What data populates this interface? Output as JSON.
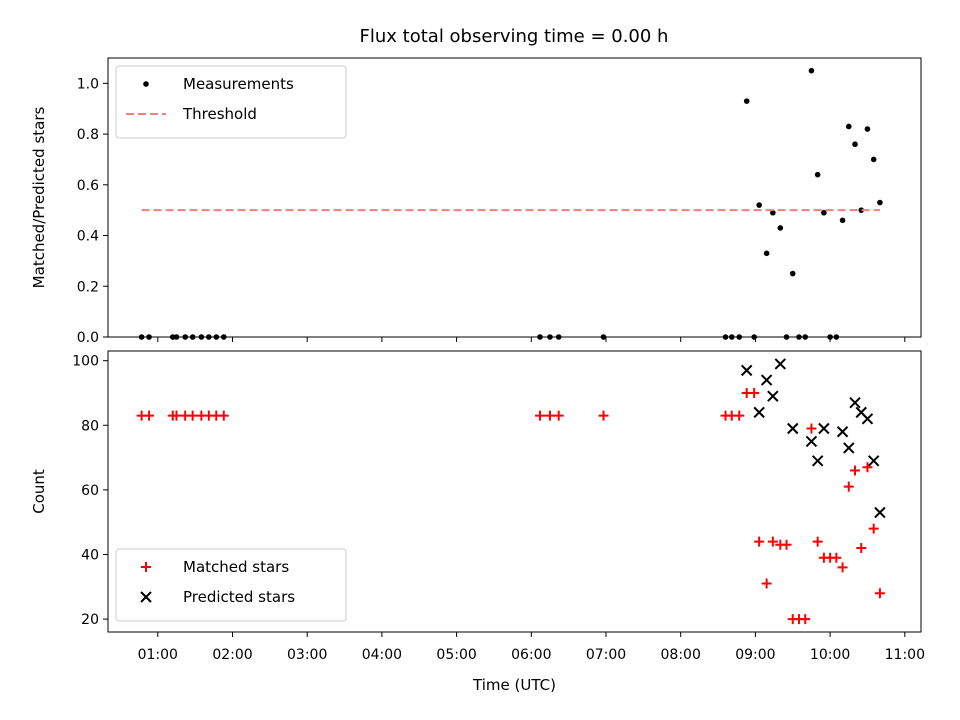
{
  "chart_data": [
    {
      "type": "scatter",
      "title": "Flux total observing time = 0.00 h",
      "xlabel": "",
      "ylabel": "Matched/Predicted stars",
      "xlim": [
        "00:20",
        "11:13"
      ],
      "ylim": [
        0,
        1.1
      ],
      "yticks": [
        "0.0",
        "0.2",
        "0.4",
        "0.6",
        "0.8",
        "1.0"
      ],
      "xticks": [
        "01:00",
        "02:00",
        "03:00",
        "04:00",
        "05:00",
        "06:00",
        "07:00",
        "08:00",
        "09:00",
        "10:00",
        "11:00"
      ],
      "legend_position": "upper-left",
      "series": [
        {
          "name": "Measurements",
          "color": "#000000",
          "marker": "dot",
          "points": [
            [
              "00:47",
              0
            ],
            [
              "00:53",
              0
            ],
            [
              "01:12",
              0
            ],
            [
              "01:15",
              0
            ],
            [
              "01:22",
              0
            ],
            [
              "01:28",
              0
            ],
            [
              "01:35",
              0
            ],
            [
              "01:41",
              0
            ],
            [
              "01:47",
              0
            ],
            [
              "01:53",
              0
            ],
            [
              "06:07",
              0
            ],
            [
              "06:15",
              0
            ],
            [
              "06:22",
              0
            ],
            [
              "06:58",
              0
            ],
            [
              "08:36",
              0
            ],
            [
              "08:41",
              0
            ],
            [
              "08:47",
              0
            ],
            [
              "08:53",
              0.93
            ],
            [
              "08:59",
              0
            ],
            [
              "09:03",
              0.52
            ],
            [
              "09:09",
              0.33
            ],
            [
              "09:14",
              0.49
            ],
            [
              "09:20",
              0.43
            ],
            [
              "09:25",
              0
            ],
            [
              "09:30",
              0.25
            ],
            [
              "09:35",
              0
            ],
            [
              "09:40",
              0
            ],
            [
              "09:45",
              1.05
            ],
            [
              "09:50",
              0.64
            ],
            [
              "09:55",
              0.49
            ],
            [
              "10:00",
              0
            ],
            [
              "10:05",
              0
            ],
            [
              "10:10",
              0.46
            ],
            [
              "10:15",
              0.83
            ],
            [
              "10:20",
              0.76
            ],
            [
              "10:25",
              0.5
            ],
            [
              "10:30",
              0.82
            ],
            [
              "10:35",
              0.7
            ],
            [
              "10:40",
              0.53
            ]
          ]
        },
        {
          "name": "Threshold",
          "color": "#f08080",
          "style": "dashed",
          "x": [
            "00:47",
            "10:40"
          ],
          "y": [
            0.5,
            0.5
          ]
        }
      ]
    },
    {
      "type": "scatter",
      "title": "",
      "xlabel": "Time (UTC)",
      "ylabel": "Count",
      "xlim": [
        "00:20",
        "11:13"
      ],
      "ylim": [
        16,
        103
      ],
      "yticks": [
        "20",
        "40",
        "60",
        "80",
        "100"
      ],
      "xticks": [
        "01:00",
        "02:00",
        "03:00",
        "04:00",
        "05:00",
        "06:00",
        "07:00",
        "08:00",
        "09:00",
        "10:00",
        "11:00"
      ],
      "legend_position": "lower-left",
      "series": [
        {
          "name": "Matched stars",
          "color": "#ff0000",
          "marker": "plus",
          "points": [
            [
              "00:47",
              83
            ],
            [
              "00:53",
              83
            ],
            [
              "01:12",
              83
            ],
            [
              "01:15",
              83
            ],
            [
              "01:22",
              83
            ],
            [
              "01:28",
              83
            ],
            [
              "01:35",
              83
            ],
            [
              "01:41",
              83
            ],
            [
              "01:47",
              83
            ],
            [
              "01:53",
              83
            ],
            [
              "06:07",
              83
            ],
            [
              "06:15",
              83
            ],
            [
              "06:22",
              83
            ],
            [
              "06:58",
              83
            ],
            [
              "08:36",
              83
            ],
            [
              "08:41",
              83
            ],
            [
              "08:47",
              83
            ],
            [
              "08:53",
              90
            ],
            [
              "08:59",
              90
            ],
            [
              "09:03",
              44
            ],
            [
              "09:09",
              31
            ],
            [
              "09:14",
              44
            ],
            [
              "09:20",
              43
            ],
            [
              "09:25",
              43
            ],
            [
              "09:30",
              20
            ],
            [
              "09:35",
              20
            ],
            [
              "09:40",
              20
            ],
            [
              "09:45",
              79
            ],
            [
              "09:50",
              44
            ],
            [
              "09:55",
              39
            ],
            [
              "10:00",
              39
            ],
            [
              "10:05",
              39
            ],
            [
              "10:10",
              36
            ],
            [
              "10:15",
              61
            ],
            [
              "10:20",
              66
            ],
            [
              "10:25",
              42
            ],
            [
              "10:30",
              67
            ],
            [
              "10:35",
              48
            ],
            [
              "10:40",
              28
            ]
          ]
        },
        {
          "name": "Predicted stars",
          "color": "#000000",
          "marker": "x",
          "points": [
            [
              "08:53",
              97
            ],
            [
              "09:03",
              84
            ],
            [
              "09:09",
              94
            ],
            [
              "09:14",
              89
            ],
            [
              "09:20",
              99
            ],
            [
              "09:30",
              79
            ],
            [
              "09:45",
              75
            ],
            [
              "09:50",
              69
            ],
            [
              "09:55",
              79
            ],
            [
              "10:10",
              78
            ],
            [
              "10:15",
              73
            ],
            [
              "10:20",
              87
            ],
            [
              "10:25",
              84
            ],
            [
              "10:30",
              82
            ],
            [
              "10:35",
              69
            ],
            [
              "10:40",
              53
            ]
          ]
        }
      ]
    }
  ]
}
